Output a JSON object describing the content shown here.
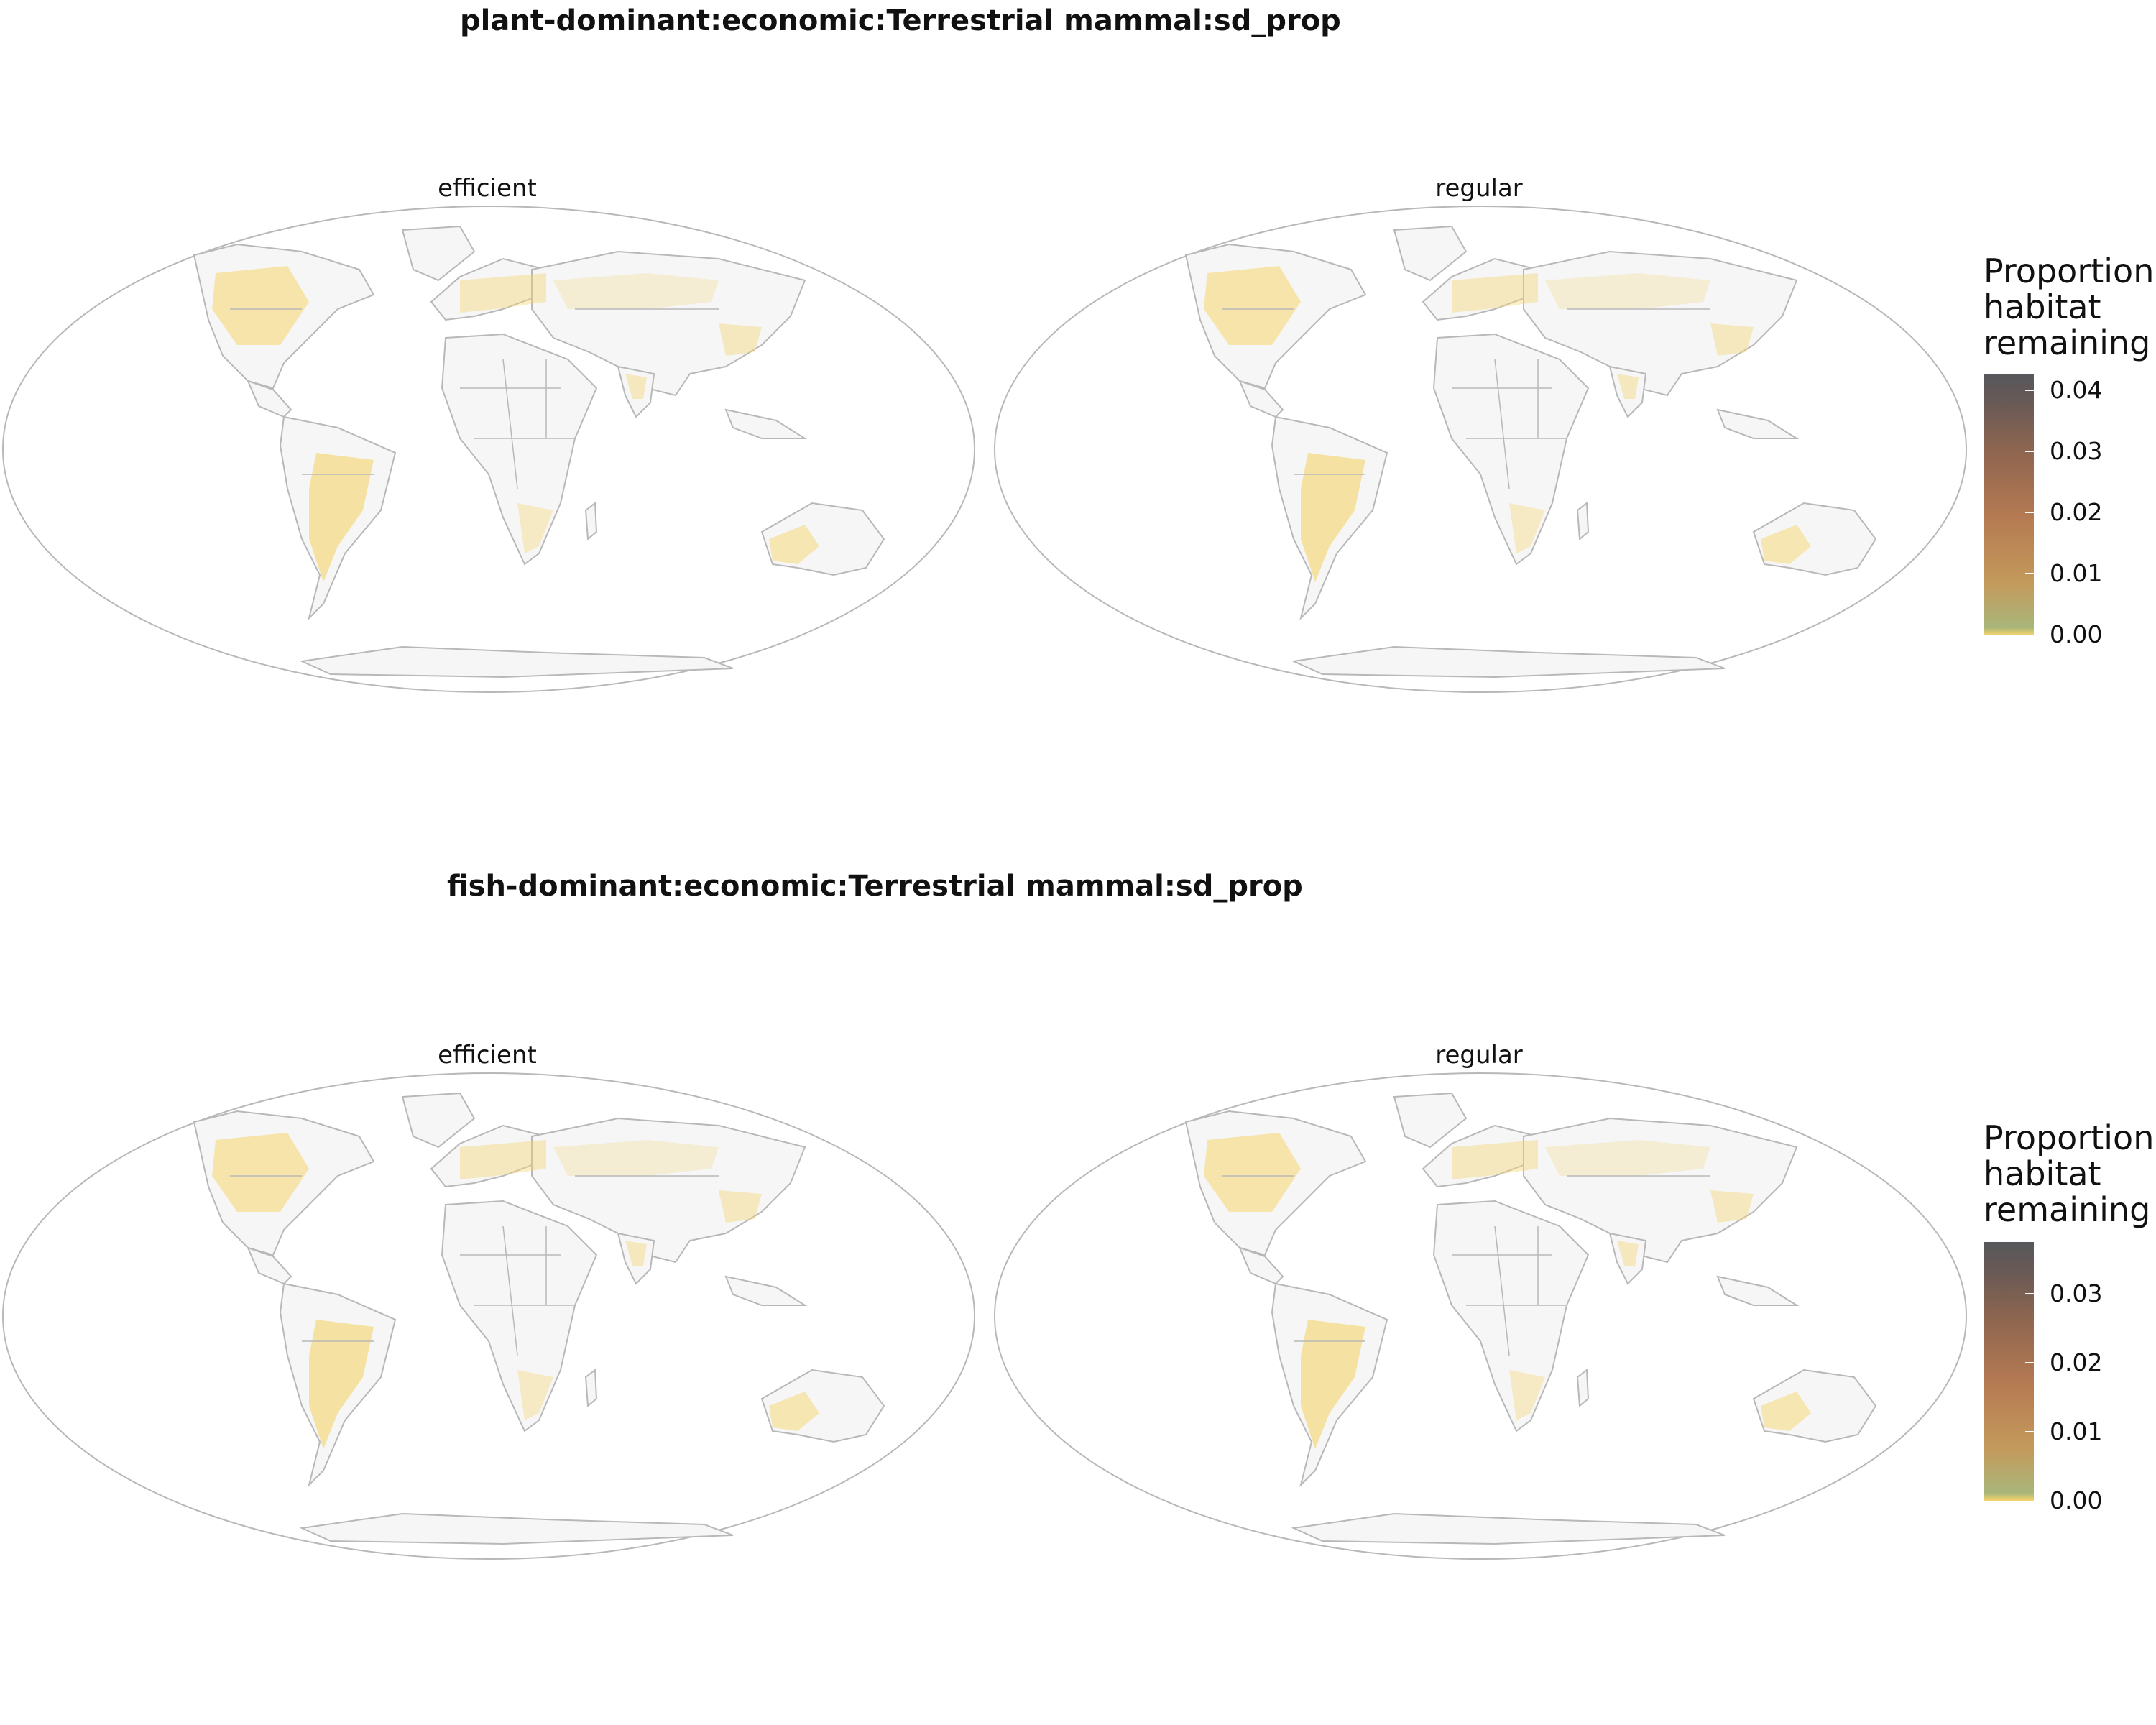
{
  "panels": [
    {
      "title": "plant-dominant:economic:Terrestrial mammal:sd_prop",
      "facets": [
        "efficient",
        "regular"
      ],
      "legend": {
        "title_lines": [
          "Proportion",
          "habitat",
          "remaining"
        ],
        "ticks": [
          "0.04",
          "0.03",
          "0.02",
          "0.01",
          "0.00"
        ],
        "max": 0.042
      }
    },
    {
      "title": "fish-dominant:economic:Terrestrial mammal:sd_prop",
      "facets": [
        "efficient",
        "regular"
      ],
      "legend": {
        "title_lines": [
          "Proportion",
          "habitat",
          "remaining"
        ],
        "ticks": [
          "0.03",
          "0.02",
          "0.01",
          "0.00"
        ],
        "max": 0.037
      }
    }
  ],
  "colors": {
    "scale_low": "#f5d56b",
    "scale_mid": "#b57a52",
    "scale_high": "#57575b",
    "land_base": "#f6f6f6",
    "borders": "#b8b8b8"
  }
}
